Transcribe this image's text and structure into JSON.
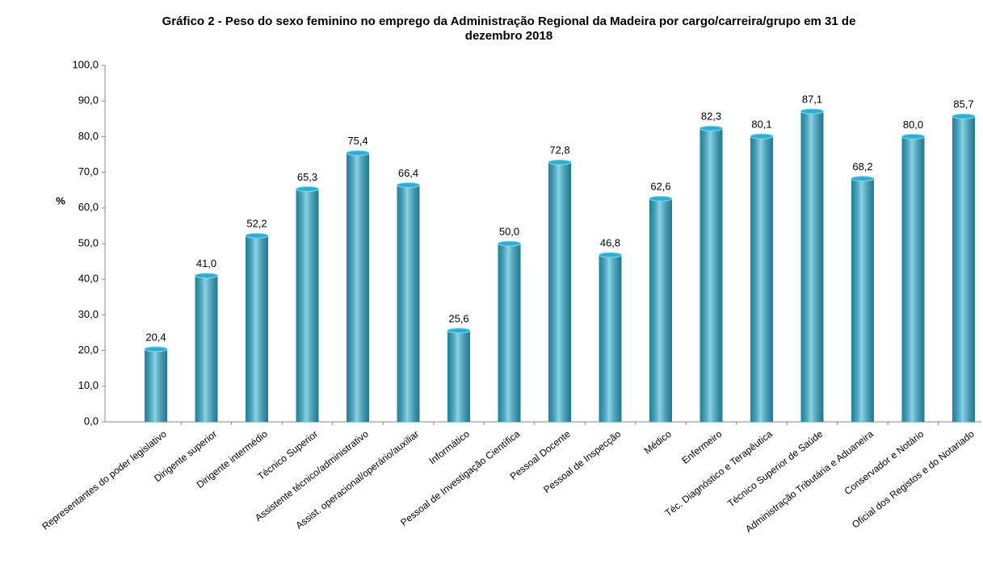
{
  "chart_data": {
    "type": "bar",
    "title": "Gráfico 2 - Peso do sexo feminino no emprego da Administração Regional da Madeira por cargo/carreira/grupo em 31 de dezembro 2018",
    "y_label": "%",
    "categories": [
      "Representantes do poder legislativo",
      "Dirigente superior",
      "Dirigente intermédio",
      "Técnico Superior",
      "Assistente técnico/administrativo",
      "Assist. operacional/operário/auxiliar",
      "Informático",
      "Pessoal de Investigação Científica",
      "Pessoal Docente",
      "Pessoal de Inspecção",
      "Médico",
      "Enfermeiro",
      "Téc. Diagnóstico e Terapêutica",
      "Técnico Superior de Saúde",
      "Administração Tributária e Aduaneira",
      "Conservador e Notário",
      "Oficial dos Registos e do Notariado"
    ],
    "values": [
      20.4,
      41.0,
      52.2,
      65.3,
      75.4,
      66.4,
      25.6,
      50.0,
      72.8,
      46.8,
      62.6,
      82.3,
      80.1,
      87.1,
      68.2,
      80.0,
      85.7
    ],
    "value_labels": [
      "20,4",
      "41,0",
      "52,2",
      "65,3",
      "75,4",
      "66,4",
      "25,6",
      "50,0",
      "72,8",
      "46,8",
      "62,6",
      "82,3",
      "80,1",
      "87,1",
      "68,2",
      "80,0",
      "85,7"
    ],
    "color": "#2bb0d3",
    "ylim": [
      0,
      100
    ],
    "yticks": [
      {
        "value": 0,
        "label": "0,0"
      },
      {
        "value": 10,
        "label": "10,0"
      },
      {
        "value": 20,
        "label": "20,0"
      },
      {
        "value": 30,
        "label": "30,0"
      },
      {
        "value": 40,
        "label": "40,0"
      },
      {
        "value": 50,
        "label": "50,0"
      },
      {
        "value": 60,
        "label": "60,0"
      },
      {
        "value": 70,
        "label": "70,0"
      },
      {
        "value": 80,
        "label": "80,0"
      },
      {
        "value": 90,
        "label": "90,0"
      },
      {
        "value": 100,
        "label": "100,0"
      }
    ],
    "grid": false
  }
}
